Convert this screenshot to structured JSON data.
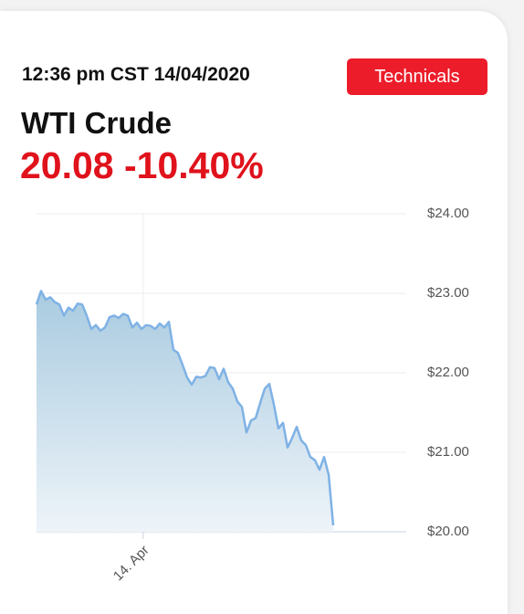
{
  "header": {
    "timestamp": "12:36 pm CST 14/04/2020",
    "button": "Technicals",
    "instrument": "WTI Crude",
    "price": 20.08,
    "change": "-10.40%"
  },
  "chart_data": {
    "type": "area",
    "color": "#7fb2e5",
    "values": [
      22.86,
      23.03,
      22.92,
      22.95,
      22.89,
      22.86,
      22.72,
      22.82,
      22.78,
      22.87,
      22.86,
      22.72,
      22.55,
      22.6,
      22.53,
      22.57,
      22.7,
      22.72,
      22.69,
      22.74,
      22.72,
      22.57,
      22.63,
      22.55,
      22.6,
      22.59,
      22.55,
      22.62,
      22.57,
      22.64,
      22.29,
      22.25,
      22.1,
      21.94,
      21.85,
      21.95,
      21.94,
      21.96,
      22.07,
      22.06,
      21.92,
      22.05,
      21.88,
      21.8,
      21.64,
      21.57,
      21.25,
      21.4,
      21.43,
      21.62,
      21.8,
      21.86,
      21.6,
      21.3,
      21.37,
      21.06,
      21.18,
      21.32,
      21.15,
      21.09,
      20.94,
      20.9,
      20.78,
      20.94,
      20.72,
      20.08
    ],
    "xlim": [
      0,
      81
    ],
    "xticks": [
      {
        "value": 23.4,
        "label": "14. Apr"
      }
    ],
    "ylim": [
      20,
      24
    ],
    "yticks": [
      {
        "value": 20,
        "label": "$20.00"
      },
      {
        "value": 21,
        "label": "$21.00"
      },
      {
        "value": 22,
        "label": "$22.00"
      },
      {
        "value": 23,
        "label": "$23.00"
      },
      {
        "value": 24,
        "label": "$24.00"
      }
    ],
    "grid": true
  }
}
